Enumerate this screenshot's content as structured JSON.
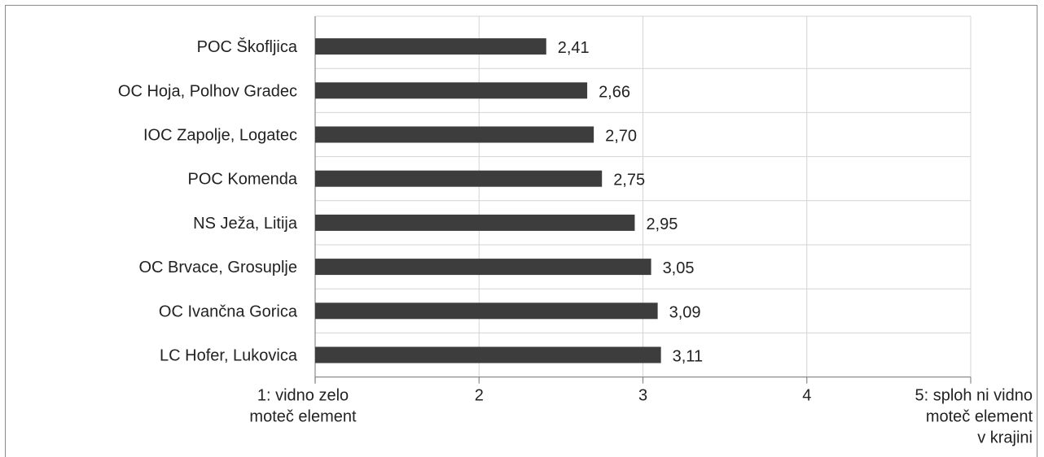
{
  "chart_data": {
    "type": "bar",
    "orientation": "horizontal",
    "categories": [
      "POC Škofljica",
      "OC Hoja, Polhov Gradec",
      "IOC Zapolje, Logatec",
      "POC Komenda",
      "NS Ježa, Litija",
      "OC Brvace, Grosuplje",
      "OC Ivančna Gorica",
      "LC Hofer, Lukovica"
    ],
    "values": [
      2.41,
      2.66,
      2.7,
      2.75,
      2.95,
      3.05,
      3.09,
      3.11
    ],
    "value_labels": [
      "2,41",
      "2,66",
      "2,70",
      "2,75",
      "2,95",
      "3,05",
      "3,09",
      "3,11"
    ],
    "xlim": [
      1,
      5
    ],
    "x_ticks": [
      {
        "value": 1,
        "lines": [
          "1: vidno zelo",
          "moteč element"
        ]
      },
      {
        "value": 2,
        "lines": [
          "2"
        ]
      },
      {
        "value": 3,
        "lines": [
          "3"
        ]
      },
      {
        "value": 4,
        "lines": [
          "4"
        ]
      },
      {
        "value": 5,
        "lines": [
          "5: sploh ni vidno",
          "moteč element",
          "v krajini"
        ]
      }
    ],
    "grid": true,
    "colors": {
      "bar": "#3d3d3d",
      "grid": "#d4d4d4"
    }
  }
}
